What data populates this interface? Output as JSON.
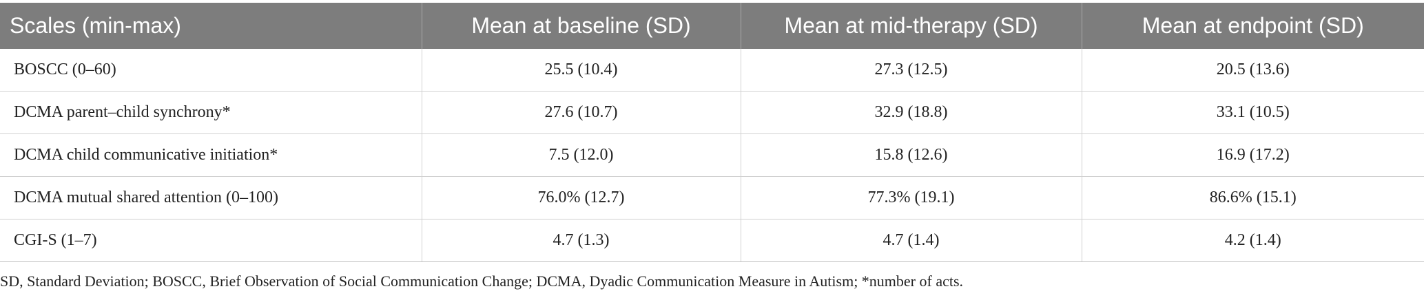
{
  "table": {
    "header": [
      "Scales (min-max)",
      "Mean at baseline (SD)",
      "Mean at mid-therapy (SD)",
      "Mean at endpoint (SD)"
    ],
    "rows": [
      [
        "BOSCC (0–60)",
        "25.5 (10.4)",
        "27.3 (12.5)",
        "20.5 (13.6)"
      ],
      [
        "DCMA parent–child synchrony*",
        "27.6 (10.7)",
        "32.9 (18.8)",
        "33.1 (10.5)"
      ],
      [
        "DCMA child communicative initiation*",
        "7.5 (12.0)",
        "15.8 (12.6)",
        "16.9 (17.2)"
      ],
      [
        "DCMA mutual shared attention (0–100)",
        "76.0% (12.7)",
        "77.3% (19.1)",
        "86.6% (15.1)"
      ],
      [
        "CGI-S (1–7)",
        "4.7 (1.3)",
        "4.7 (1.4)",
        "4.2 (1.4)"
      ]
    ],
    "footnote": "SD, Standard Deviation; BOSCC, Brief Observation of Social Communication Change; DCMA, Dyadic Communication Measure in Autism; *number of acts."
  }
}
